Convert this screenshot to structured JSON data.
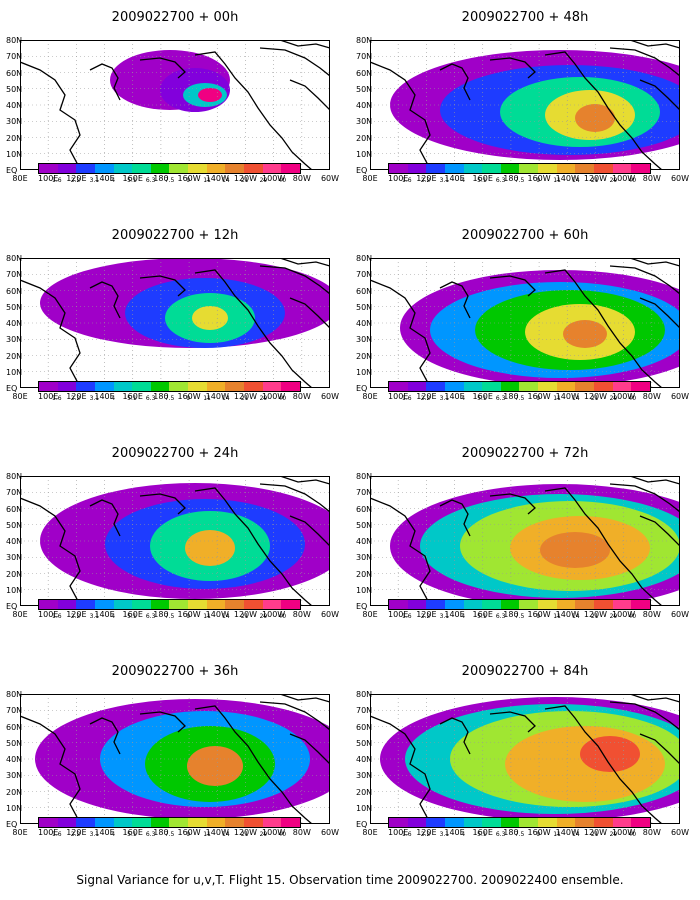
{
  "panels": [
    {
      "title": "2009022700 + 00h"
    },
    {
      "title": "2009022700 + 48h"
    },
    {
      "title": "2009022700 + 12h"
    },
    {
      "title": "2009022700 + 60h"
    },
    {
      "title": "2009022700 + 24h"
    },
    {
      "title": "2009022700 + 72h"
    },
    {
      "title": "2009022700 + 36h"
    },
    {
      "title": "2009022700 + 84h"
    }
  ],
  "lat_labels": [
    "80N",
    "70N",
    "60N",
    "50N",
    "40N",
    "30N",
    "20N",
    "10N",
    "EQ"
  ],
  "lon_labels": [
    "80E",
    "100E",
    "120E",
    "140E",
    "160E",
    "180",
    "160W",
    "140W",
    "120W",
    "100W",
    "80W",
    "60W"
  ],
  "colorbar": {
    "labels": [
      "1.6",
      "2.2",
      "3.1",
      "4",
      "5.1",
      "6.3",
      "7.5",
      "9",
      "11",
      "14",
      "21",
      "29",
      "40"
    ],
    "colors": [
      "#a000c8",
      "#8200dc",
      "#1e3cff",
      "#0096ff",
      "#00c8c8",
      "#00dc96",
      "#00c800",
      "#a0e632",
      "#e6dc32",
      "#f0af28",
      "#e6822d",
      "#f05032",
      "#ff3c8c",
      "#f00082"
    ]
  },
  "caption": "Signal Variance for u,v,T. Flight 15. Observation time 2009022700. 2009022400 ensemble."
}
